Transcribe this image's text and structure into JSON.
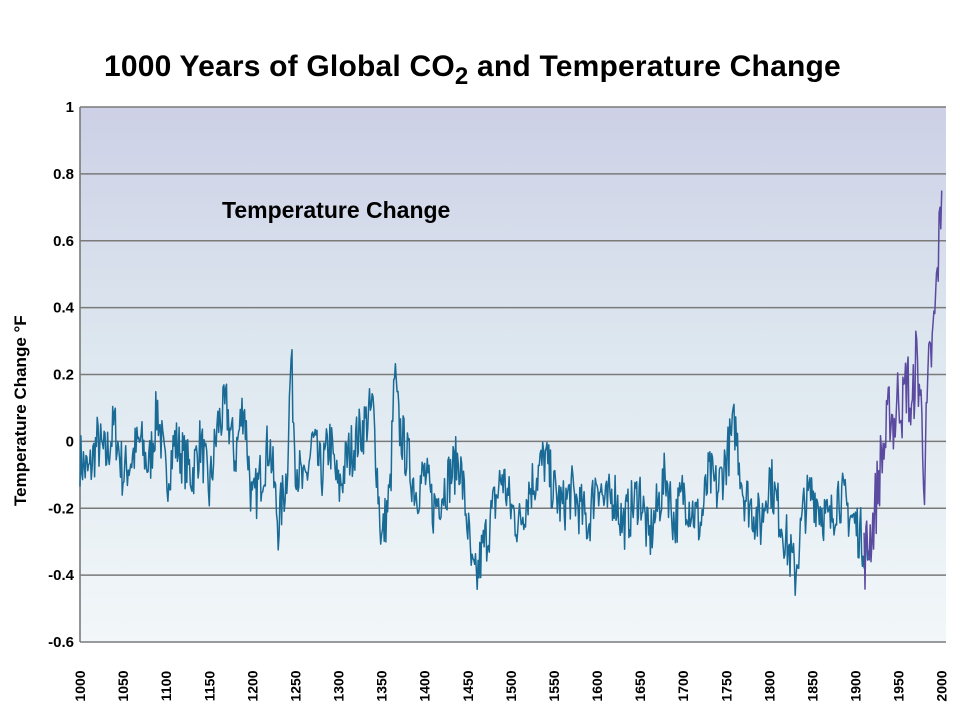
{
  "chart_data": {
    "type": "line",
    "title_main": "1000 Years of Global CO",
    "title_subscript": "2",
    "title_rest": " and Temperature Change",
    "annotation": "Temperature Change",
    "ylabel": "Temperature Change °F",
    "xlabel": "",
    "xlim": [
      1000,
      2005
    ],
    "ylim": [
      -0.6,
      1
    ],
    "yticks": [
      "1",
      "0.8",
      "0.6",
      "0.4",
      "0.2",
      "0",
      "-0.2",
      "-0.4",
      "-0.6"
    ],
    "ytick_values": [
      1,
      0.8,
      0.6,
      0.4,
      0.2,
      0,
      -0.2,
      -0.4,
      -0.6
    ],
    "xticks": [
      "1000",
      "1050",
      "1100",
      "1150",
      "1200",
      "1250",
      "1300",
      "1350",
      "1400",
      "1450",
      "1500",
      "1550",
      "1600",
      "1650",
      "1700",
      "1750",
      "1800",
      "1850",
      "1900",
      "1950",
      "2000"
    ],
    "xtick_values": [
      1000,
      1050,
      1100,
      1150,
      1200,
      1250,
      1300,
      1350,
      1400,
      1450,
      1500,
      1550,
      1600,
      1650,
      1700,
      1750,
      1800,
      1850,
      1900,
      1950,
      2000
    ],
    "grid": true,
    "series": [
      {
        "color": "#1a6a96",
        "x": [
          1000,
          1010,
          1020,
          1030,
          1040,
          1050,
          1060,
          1070,
          1080,
          1090,
          1100,
          1110,
          1120,
          1130,
          1140,
          1150,
          1160,
          1170,
          1180,
          1190,
          1200,
          1210,
          1220,
          1230,
          1240,
          1245,
          1250,
          1260,
          1270,
          1280,
          1290,
          1300,
          1310,
          1320,
          1330,
          1340,
          1350,
          1360,
          1365,
          1370,
          1380,
          1390,
          1400,
          1410,
          1420,
          1430,
          1440,
          1450,
          1455,
          1460,
          1465,
          1470,
          1480,
          1490,
          1500,
          1510,
          1520,
          1530,
          1540,
          1550,
          1560,
          1570,
          1580,
          1590,
          1600,
          1610,
          1620,
          1630,
          1640,
          1650,
          1660,
          1670,
          1680,
          1690,
          1700,
          1710,
          1720,
          1730,
          1740,
          1750,
          1760,
          1770,
          1780,
          1790,
          1800,
          1810,
          1820,
          1830,
          1840,
          1850,
          1860,
          1870,
          1880,
          1890,
          1900,
          1910,
          1915
        ],
        "y": [
          -0.05,
          -0.1,
          0.0,
          -0.05,
          0.05,
          -0.1,
          -0.05,
          0.0,
          -0.08,
          0.1,
          -0.12,
          0.0,
          -0.05,
          -0.1,
          0.0,
          -0.15,
          0.05,
          0.1,
          -0.05,
          0.12,
          -0.2,
          -0.1,
          0.0,
          -0.25,
          -0.1,
          0.25,
          -0.05,
          -0.15,
          0.0,
          -0.1,
          0.0,
          -0.15,
          -0.05,
          0.0,
          0.05,
          0.1,
          -0.3,
          -0.15,
          0.2,
          0.05,
          -0.05,
          -0.15,
          -0.1,
          -0.2,
          -0.15,
          -0.1,
          -0.05,
          -0.25,
          -0.4,
          -0.42,
          -0.35,
          -0.3,
          -0.2,
          -0.1,
          -0.2,
          -0.25,
          -0.15,
          -0.1,
          -0.05,
          -0.15,
          -0.2,
          -0.15,
          -0.2,
          -0.25,
          -0.1,
          -0.2,
          -0.15,
          -0.25,
          -0.2,
          -0.15,
          -0.3,
          -0.2,
          -0.1,
          -0.25,
          -0.15,
          -0.2,
          -0.25,
          -0.1,
          -0.15,
          -0.05,
          0.05,
          -0.15,
          -0.2,
          -0.25,
          -0.1,
          -0.2,
          -0.3,
          -0.4,
          -0.2,
          -0.15,
          -0.2,
          -0.25,
          -0.15,
          -0.2,
          -0.25,
          -0.3,
          -0.35
        ]
      },
      {
        "color": "#5b4ba0",
        "x": [
          1910,
          1915,
          1920,
          1925,
          1930,
          1935,
          1940,
          1945,
          1950,
          1955,
          1960,
          1965,
          1970,
          1975,
          1980,
          1985,
          1990,
          1995,
          2000
        ],
        "y": [
          -0.35,
          -0.3,
          -0.25,
          -0.15,
          -0.05,
          0.0,
          0.1,
          0.05,
          0.15,
          0.1,
          0.2,
          0.05,
          0.25,
          0.15,
          -0.1,
          0.2,
          0.3,
          0.5,
          0.75
        ]
      }
    ]
  }
}
